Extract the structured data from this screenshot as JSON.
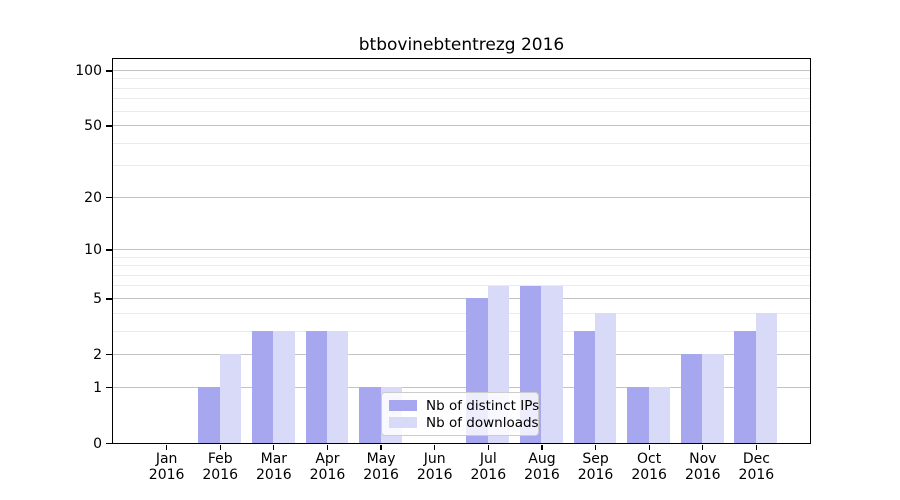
{
  "chart_data": {
    "type": "bar",
    "title": "btbovinebtentrezg 2016",
    "x_categories": [
      "Jan",
      "Feb",
      "Mar",
      "Apr",
      "May",
      "Jun",
      "Jul",
      "Aug",
      "Sep",
      "Oct",
      "Nov",
      "Dec"
    ],
    "x_year_suffix": "2016",
    "series": [
      {
        "name": "Nb of distinct IPs",
        "color": "#a7a7f0",
        "values": [
          0,
          1,
          3,
          3,
          1,
          0,
          5,
          6,
          3,
          1,
          2,
          3
        ]
      },
      {
        "name": "Nb of downloads",
        "color": "#d9d9f8",
        "values": [
          0,
          2,
          3,
          3,
          1,
          0,
          6,
          6,
          4,
          1,
          2,
          4
        ]
      }
    ],
    "yscale": "log10(1+x)",
    "ylim": [
      0,
      115
    ],
    "y_major_ticks": [
      0,
      1,
      2,
      5,
      10,
      20,
      50,
      100
    ],
    "y_minor_gridlines": [
      3,
      4,
      6,
      7,
      8,
      9,
      30,
      40,
      60,
      70,
      80,
      90
    ],
    "grid": true,
    "legend_position": "lower-center-inside",
    "bar_group": "side-by-side"
  }
}
